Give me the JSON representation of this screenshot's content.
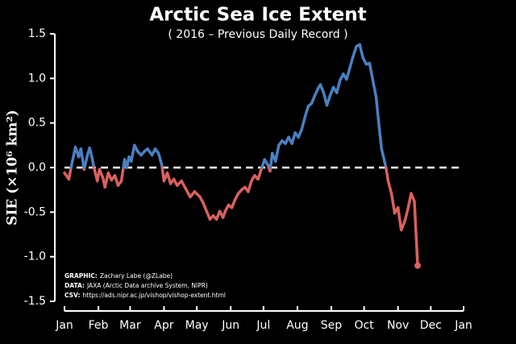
{
  "chart_data": {
    "type": "line",
    "title": "Arctic Sea Ice Extent",
    "subtitle": "( 2016 – Previous Daily Record )",
    "y_label": "SIE (×10⁶ km²)",
    "x": [
      0,
      4,
      6,
      10,
      13,
      15,
      18,
      21,
      23,
      25,
      27,
      30,
      32,
      35,
      37,
      40,
      43,
      46,
      49,
      52,
      55,
      57,
      59,
      61,
      64,
      67,
      70,
      73,
      76,
      80,
      83,
      86,
      89,
      91,
      94,
      97,
      100,
      103,
      107,
      111,
      115,
      119,
      124,
      127,
      130,
      133,
      136,
      139,
      142,
      145,
      147,
      150,
      153,
      156,
      159,
      162,
      165,
      168,
      171,
      174,
      177,
      180,
      183,
      186,
      188,
      190,
      193,
      196,
      199,
      202,
      205,
      208,
      211,
      214,
      217,
      220,
      223,
      226,
      229,
      232,
      234,
      237,
      240,
      243,
      246,
      249,
      252,
      255,
      258,
      261,
      264,
      267,
      270,
      273,
      276,
      279,
      282,
      285,
      288,
      290,
      294,
      296,
      299,
      302,
      305,
      308,
      311,
      314,
      317,
      320,
      323
    ],
    "series": [
      {
        "positive_color": "#4a80c2",
        "negative_color": "#d9615f",
        "values": [
          -0.06,
          -0.13,
          0,
          0.23,
          0.12,
          0.21,
          -0.02,
          0.14,
          0.22,
          0.12,
          0,
          -0.15,
          -0.02,
          -0.11,
          -0.22,
          -0.06,
          -0.14,
          -0.09,
          -0.2,
          -0.15,
          0.09,
          0,
          0.12,
          0.07,
          0.25,
          0.18,
          0.14,
          0.18,
          0.21,
          0.14,
          0.21,
          0.16,
          0.03,
          -0.15,
          -0.06,
          -0.18,
          -0.13,
          -0.2,
          -0.15,
          -0.24,
          -0.33,
          -0.27,
          -0.33,
          -0.4,
          -0.49,
          -0.58,
          -0.54,
          -0.58,
          -0.49,
          -0.56,
          -0.49,
          -0.42,
          -0.45,
          -0.36,
          -0.29,
          -0.25,
          -0.22,
          -0.27,
          -0.15,
          -0.09,
          -0.13,
          -0.02,
          0.09,
          0.03,
          -0.04,
          0.16,
          0.07,
          0.25,
          0.3,
          0.27,
          0.34,
          0.27,
          0.39,
          0.34,
          0.43,
          0.57,
          0.69,
          0.72,
          0.81,
          0.89,
          0.93,
          0.84,
          0.7,
          0.81,
          0.9,
          0.84,
          0.98,
          1.05,
          0.99,
          1.12,
          1.25,
          1.36,
          1.38,
          1.23,
          1.16,
          1.17,
          0.98,
          0.79,
          0.43,
          0.21,
          0,
          -0.15,
          -0.29,
          -0.51,
          -0.45,
          -0.7,
          -0.61,
          -0.47,
          -0.29,
          -0.38,
          -1.1
        ]
      }
    ],
    "end_marker": true,
    "zero_line": true,
    "xlim": [
      0,
      365
    ],
    "xticks": [
      {
        "value": 0,
        "label": "Jan"
      },
      {
        "value": 31,
        "label": "Feb"
      },
      {
        "value": 60,
        "label": "Mar"
      },
      {
        "value": 91,
        "label": "Apr"
      },
      {
        "value": 121,
        "label": "May"
      },
      {
        "value": 152,
        "label": "Jun"
      },
      {
        "value": 182,
        "label": "Jul"
      },
      {
        "value": 213,
        "label": "Aug"
      },
      {
        "value": 244,
        "label": "Sep"
      },
      {
        "value": 274,
        "label": "Oct"
      },
      {
        "value": 305,
        "label": "Nov"
      },
      {
        "value": 335,
        "label": "Dec"
      },
      {
        "value": 365,
        "label": "Jan"
      }
    ],
    "ylim": [
      -1.5,
      1.5
    ],
    "yticks": [
      1.5,
      {
        "value": 1,
        "label": "1.0"
      },
      0.5,
      {
        "value": 0,
        "label": "0.0"
      },
      -0.5,
      {
        "value": -1,
        "label": "-1.0"
      },
      -1.5
    ],
    "notes": [
      {
        "label": "GRAPHIC:",
        "text": "Zachary Labe (@ZLabe)"
      },
      {
        "label": "DATA:",
        "text": "JAXA (Arctic Data archive System, NIPR)"
      },
      {
        "label": "CSV:",
        "text": "https://ads.nipr.ac.jp/vishop/vishop-extent.html"
      }
    ]
  }
}
